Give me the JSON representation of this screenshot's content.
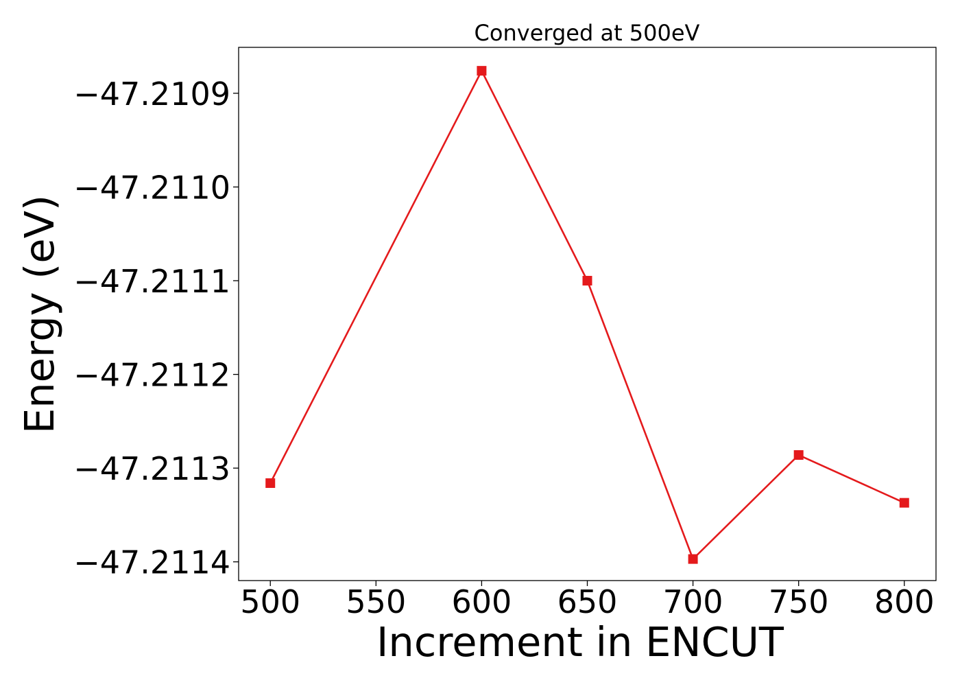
{
  "chart_data": {
    "type": "line",
    "title": "Converged at 500eV",
    "xlabel": "Increment in ENCUT",
    "ylabel": "Energy (eV)",
    "x": [
      500,
      600,
      650,
      700,
      750,
      800
    ],
    "series": [
      {
        "values": [
          -47.211316,
          -47.210876,
          -47.2111,
          -47.211397,
          -47.211286,
          -47.211337
        ],
        "color": "#e41a1c",
        "marker": "square"
      }
    ],
    "xlim": [
      485,
      815
    ],
    "ylim": [
      -47.21142,
      -47.210851
    ],
    "xticks": [
      500,
      550,
      600,
      650,
      700,
      750,
      800
    ],
    "xtick_labels": [
      "500",
      "550",
      "600",
      "650",
      "700",
      "750",
      "800"
    ],
    "yticks": [
      -47.2109,
      -47.211,
      -47.2111,
      -47.2112,
      -47.2113,
      -47.2114
    ],
    "ytick_labels": [
      "−47.2109",
      "−47.2110",
      "−47.2111",
      "−47.2112",
      "−47.2113",
      "−47.2114"
    ],
    "grid": false,
    "legend": "none"
  }
}
